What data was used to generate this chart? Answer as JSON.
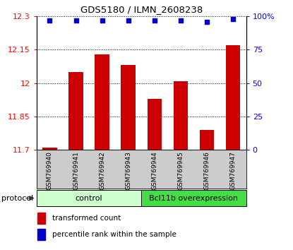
{
  "title": "GDS5180 / ILMN_2608238",
  "samples": [
    "GSM769940",
    "GSM769941",
    "GSM769942",
    "GSM769943",
    "GSM769944",
    "GSM769945",
    "GSM769946",
    "GSM769947"
  ],
  "bar_values": [
    11.71,
    12.05,
    12.13,
    12.08,
    11.93,
    12.01,
    11.79,
    12.17
  ],
  "percentile_values": [
    97,
    97,
    97,
    97,
    97,
    97,
    96,
    98
  ],
  "ylim_left": [
    11.7,
    12.3
  ],
  "ylim_right": [
    0,
    100
  ],
  "yticks_left": [
    11.7,
    11.85,
    12.0,
    12.15,
    12.3
  ],
  "yticks_right": [
    0,
    25,
    50,
    75,
    100
  ],
  "ytick_labels_left": [
    "11.7",
    "11.85",
    "12",
    "12.15",
    "12.3"
  ],
  "ytick_labels_right": [
    "0",
    "25",
    "50",
    "75",
    "100%"
  ],
  "bar_color": "#cc0000",
  "dot_color": "#0000cc",
  "control_label": "control",
  "overexpression_label": "Bcl11b overexpression",
  "protocol_label": "protocol",
  "legend_bar_label": "transformed count",
  "legend_dot_label": "percentile rank within the sample",
  "control_color": "#ccffcc",
  "overexpression_color": "#44dd44",
  "sample_area_color": "#cccccc"
}
